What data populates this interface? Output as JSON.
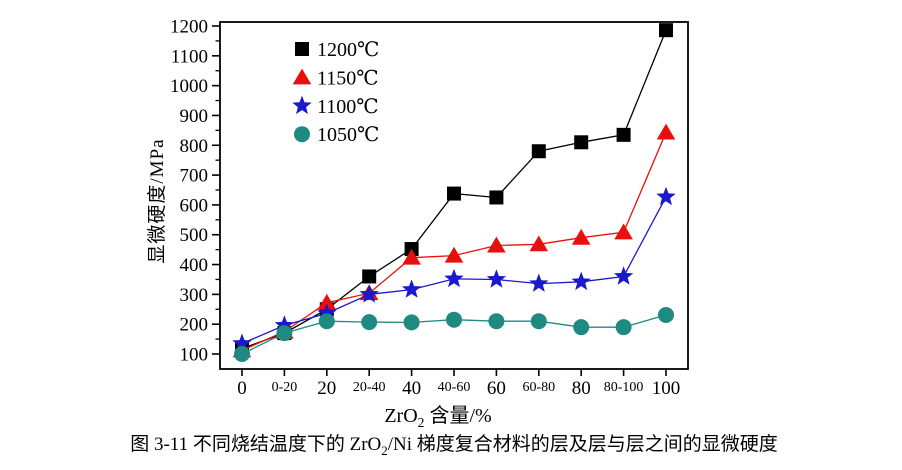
{
  "figure": {
    "caption": {
      "pre": "图 3-11 不同烧结温度下的 ZrO",
      "sub": "2",
      "post": "/Ni 梯度复合材料的层及层与层之间的显微硬度"
    }
  },
  "chart_data": {
    "type": "line",
    "title": "",
    "xlabel": "ZrO₂ 含量/%",
    "xlabel_parts": {
      "pre": "ZrO",
      "sub": "2",
      "post": " 含量/%"
    },
    "ylabel": "显微硬度/MPa",
    "categories": [
      "0",
      "0-20",
      "20",
      "20-40",
      "40",
      "40-60",
      "60",
      "60-80",
      "80",
      "80-100",
      "100"
    ],
    "series": [
      {
        "name": "1200℃",
        "marker": "square",
        "color": "#000000",
        "values": [
          118,
          170,
          250,
          360,
          452,
          638,
          625,
          780,
          810,
          835,
          1186
        ]
      },
      {
        "name": "1150℃",
        "marker": "triangle-up",
        "color": "#e8100c",
        "values": [
          112,
          175,
          272,
          304,
          423,
          430,
          464,
          468,
          490,
          508,
          843
        ]
      },
      {
        "name": "1100℃",
        "marker": "star",
        "color": "#1a1acc",
        "values": [
          135,
          196,
          236,
          300,
          316,
          352,
          350,
          336,
          342,
          360,
          627
        ]
      },
      {
        "name": "1050℃",
        "marker": "circle",
        "color": "#1f8a82",
        "values": [
          100,
          170,
          210,
          207,
          206,
          215,
          210,
          210,
          190,
          190,
          231
        ]
      }
    ],
    "yticks": [
      100,
      200,
      300,
      400,
      500,
      600,
      700,
      800,
      900,
      1000,
      1100,
      1200
    ],
    "ylim": [
      50,
      1213
    ],
    "grid": false,
    "legend_position": "upper-left-inside"
  }
}
